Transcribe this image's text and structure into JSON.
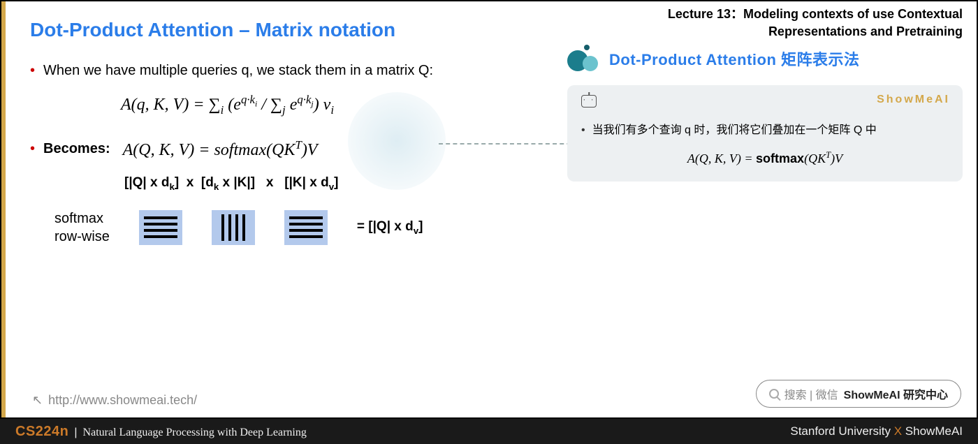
{
  "slide": {
    "title": "Dot-Product Attention – Matrix notation",
    "bullet1": "When we have multiple queries q, we stack them in a matrix Q:",
    "formula1_html": "A(q, K, V) = ∑<sub>i</sub> (e<sup>q·k<sub>i</sub></sup> / ∑<sub>j</sub> e<sup>q·k<sub>j</sub></sup>) v<sub>i</sub>",
    "becomes_label": "Becomes:",
    "formula2_html": "A(Q, K, V) = softmax(QK<sup>T</sup>)V",
    "dims_html": "[|Q| x d<sub>k</sub>]  x  [d<sub>k</sub> x |K|]   x   [|K| x d<sub>v</sub>]",
    "rowwise_line1": "softmax",
    "rowwise_line2": "row-wise",
    "result_dim_html": "= [|Q| x d<sub>v</sub>]",
    "url": "http://www.showmeai.tech/",
    "matrix_bg_color": "#b3c9ec"
  },
  "header": {
    "lecture_line1": "Lecture 13：Modeling contexts of use Contextual",
    "lecture_line2": "Representations and Pretraining",
    "section_title": "Dot-Product Attention 矩阵表示法"
  },
  "note": {
    "brand": "ShowMeAI",
    "bullet_text": "当我们有多个查询 q 时，我们将它们叠加在一个矩阵 Q 中",
    "formula_html": "A(Q, K, V) = <span class='sf'>softmax</span>(QK<sup>T</sup>)V"
  },
  "search": {
    "prefix": "搜索 | 微信",
    "bold": "ShowMeAI 研究中心"
  },
  "footer": {
    "course_code": "CS224n",
    "separator": "|",
    "course_name": "Natural Language Processing with Deep Learning",
    "right_uni": "Stanford University",
    "right_x": "X",
    "right_brand": "ShowMeAI"
  },
  "colors": {
    "accent_blue": "#2b7de9",
    "accent_orange": "#cc7a29",
    "gold": "#d4a84b",
    "teal_dark": "#155e6b",
    "teal_mid": "#1b7d8c",
    "teal_light": "#6bc3ce",
    "note_bg": "#edf0f2",
    "footer_bg": "#1a1a1a"
  }
}
